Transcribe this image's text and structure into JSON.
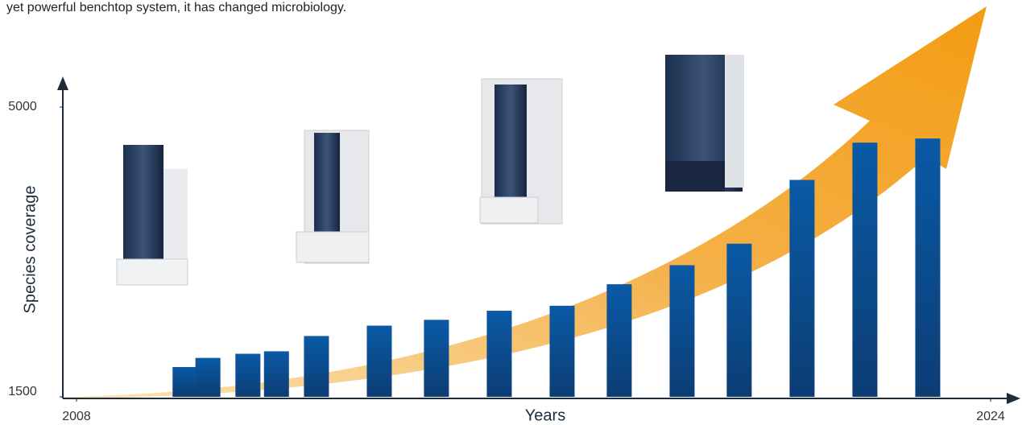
{
  "chart_data": {
    "type": "bar",
    "caption": "yet powerful benchtop system, it has changed microbiology.",
    "x_label": "Years",
    "y_label": "Species coverage",
    "x": [
      2009.9,
      2010.3,
      2011.0,
      2011.5,
      2012.2,
      2013.3,
      2014.3,
      2015.4,
      2016.5,
      2017.5,
      2018.6,
      2019.6,
      2020.7,
      2021.8,
      2022.9
    ],
    "values": [
      1860,
      1970,
      2020,
      2050,
      2235,
      2360,
      2430,
      2540,
      2600,
      2860,
      3090,
      3350,
      4120,
      4570,
      4620
    ],
    "color": "#0a5aa6",
    "xlim": [
      2008,
      2024
    ],
    "xticks": [
      2008,
      2024
    ],
    "ylim": [
      1500,
      5000
    ],
    "yticks": [
      1500,
      5000
    ]
  }
}
